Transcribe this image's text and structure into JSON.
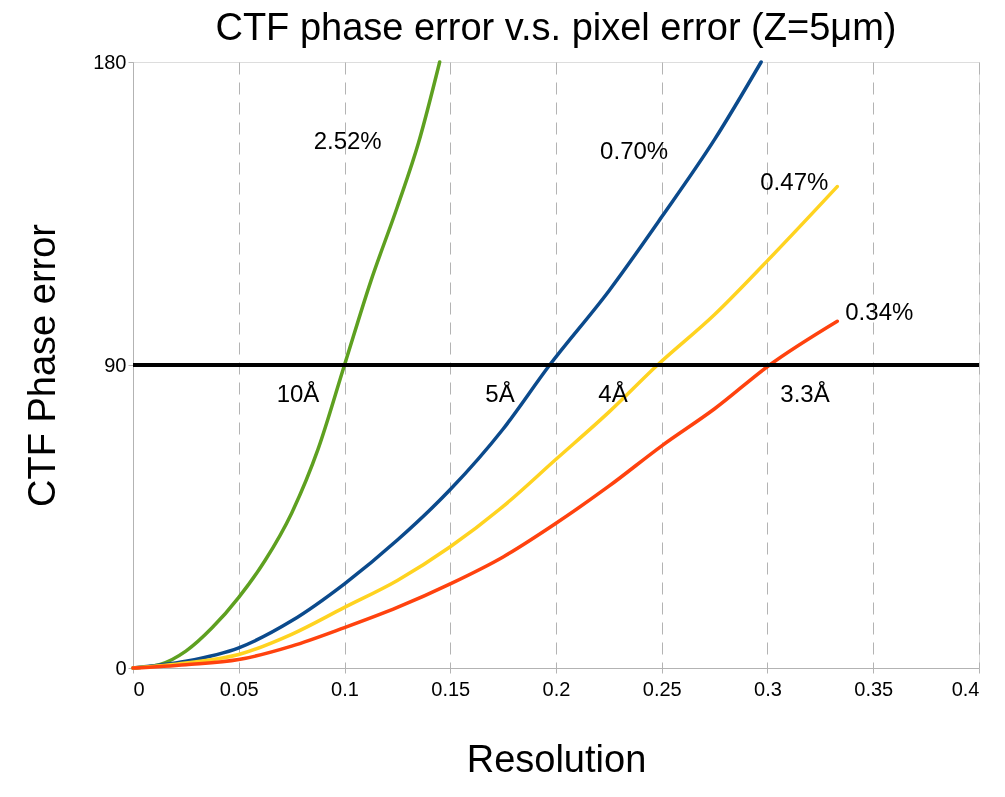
{
  "chart_data": {
    "type": "line",
    "title": "CTF phase error v.s. pixel error (Z=5μm)",
    "xlabel": "Resolution",
    "ylabel": "CTF Phase error",
    "xlim": [
      0,
      0.4
    ],
    "xticks": [
      0,
      0.05,
      0.1,
      0.15,
      0.2,
      0.25,
      0.3,
      0.35,
      {
        "value": 0.4,
        "label": "0.4"
      }
    ],
    "ylim": [
      0,
      180
    ],
    "yticks": [
      0,
      90,
      180
    ],
    "grid": "x",
    "legend": false,
    "marker": "none",
    "line_style": "solid",
    "series": [
      {
        "name": "2.52%",
        "color": "#5ea020",
        "x": [
          0,
          0.0125,
          0.025,
          0.0375,
          0.05,
          0.0625,
          0.075,
          0.0875,
          0.1,
          0.1125,
          0.125,
          0.135,
          0.145
        ],
        "values": [
          0,
          1,
          5,
          12,
          21,
          32,
          46,
          65,
          90,
          115,
          137,
          156,
          180
        ]
      },
      {
        "name": "0.70%",
        "color": "#0b4a8c",
        "x": [
          0,
          0.025,
          0.05,
          0.075,
          0.1,
          0.125,
          0.15,
          0.175,
          0.197,
          0.225,
          0.25,
          0.275,
          0.297
        ],
        "values": [
          0,
          2,
          6,
          14,
          25,
          38,
          53,
          71,
          90,
          112,
          134,
          157,
          180
        ]
      },
      {
        "name": "0.47%",
        "color": "#ffd320",
        "x": [
          0,
          0.025,
          0.05,
          0.075,
          0.1,
          0.125,
          0.15,
          0.175,
          0.2,
          0.225,
          0.248,
          0.275,
          0.3,
          0.333
        ],
        "values": [
          0,
          1.5,
          4,
          10,
          18,
          26,
          36,
          48,
          62,
          76,
          90,
          105,
          121,
          143
        ]
      },
      {
        "name": "0.34%",
        "color": "#ff420e",
        "x": [
          0,
          0.025,
          0.05,
          0.075,
          0.1,
          0.125,
          0.15,
          0.175,
          0.2,
          0.225,
          0.25,
          0.275,
          0.301,
          0.333
        ],
        "values": [
          0,
          1,
          2.5,
          6.5,
          12,
          18,
          25,
          33,
          43,
          54,
          66,
          77,
          90,
          103
        ]
      }
    ],
    "ref_lines": [
      {
        "axis": "y",
        "value": 90,
        "color": "#000000",
        "line_style": "solid"
      }
    ],
    "annotations": [
      "10Å",
      "5Å",
      "4Å",
      "3.3Å"
    ]
  }
}
